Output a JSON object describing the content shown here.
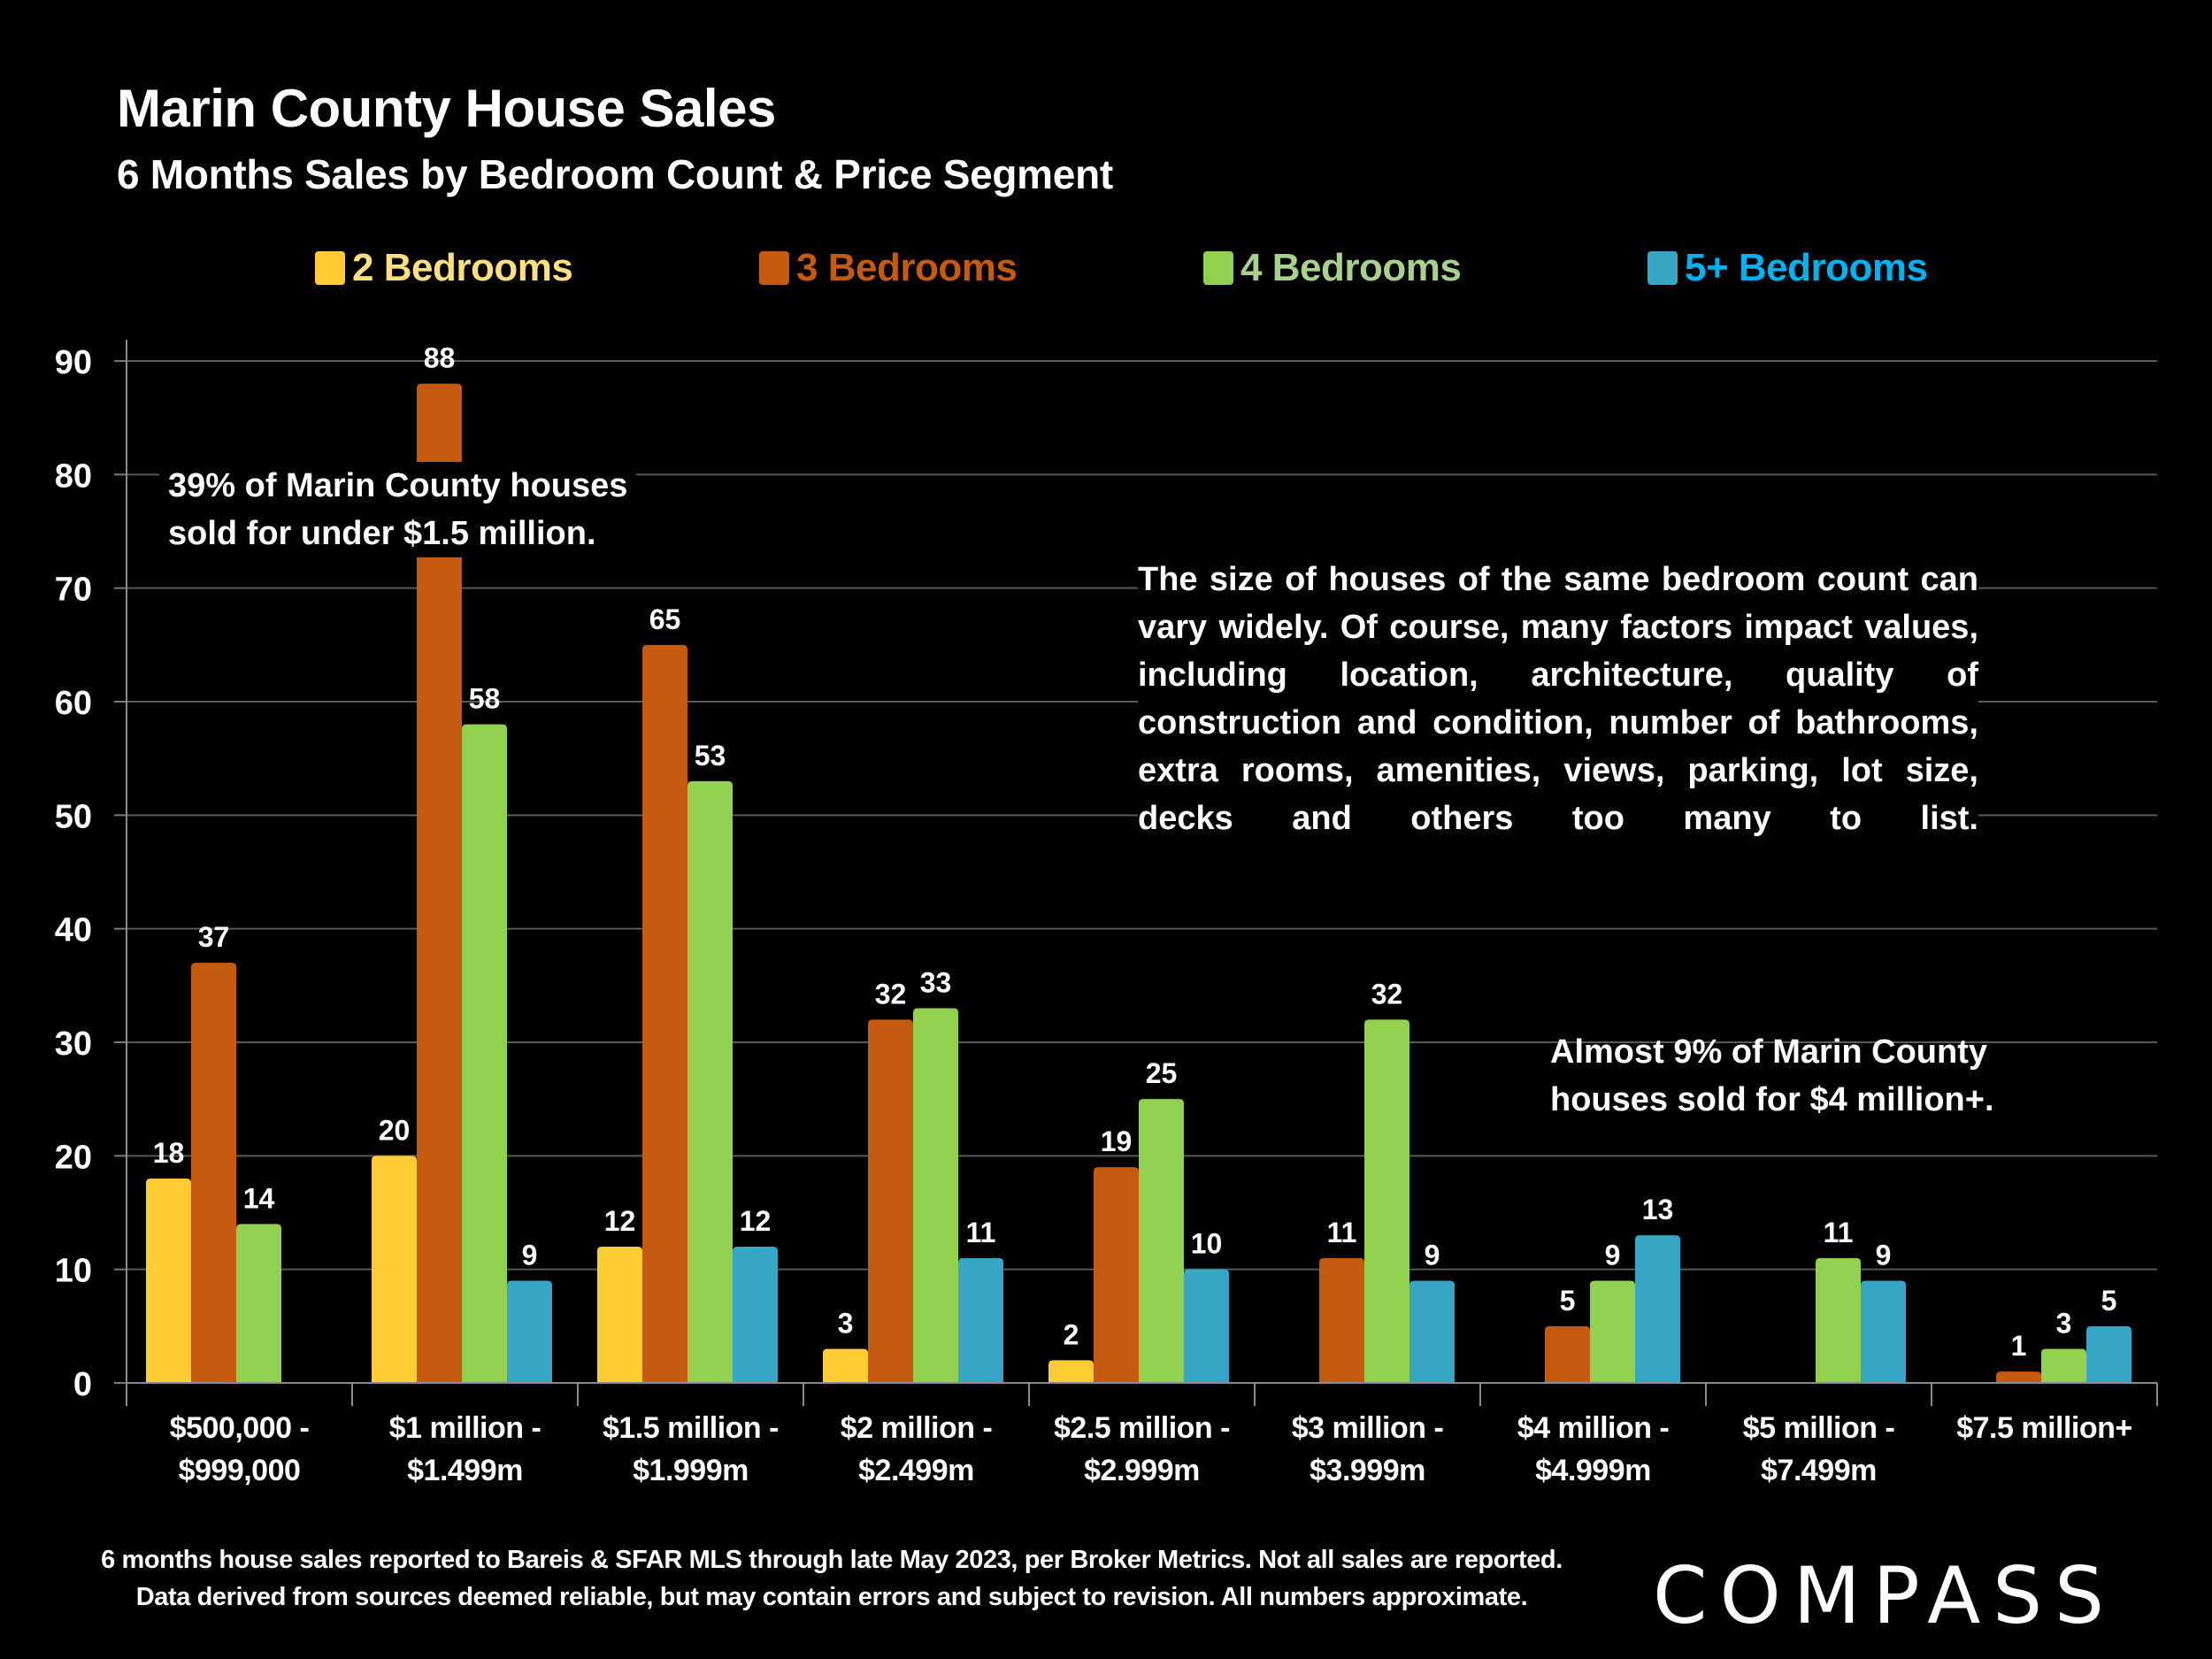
{
  "header": {
    "title": "Marin County House Sales",
    "subtitle": "6 Months Sales by Bedroom Count & Price Segment"
  },
  "annotations": {
    "left": [
      "39% of Marin County houses",
      "sold for under $1.5 million."
    ],
    "right": "The size of houses of the same bedroom count can vary widely. Of course, many factors impact values, including  location, architecture, quality of construction and condition, number of bathrooms, extra rooms, amenities, views, parking, lot size, decks and others too many to list.",
    "bottom": [
      "Almost 9% of Marin County",
      "houses sold for $4 million+."
    ]
  },
  "footer": {
    "line1": "6 months house sales reported to Bareis & SFAR MLS through late May 2023, per Broker Metrics. Not all sales are reported.",
    "line2": "Data derived from sources deemed reliable, but may contain errors and subject to revision. All numbers approximate.",
    "logo": "COMPASS"
  },
  "chart_data": {
    "type": "bar",
    "title": "Marin County House Sales",
    "subtitle": "6 Months Sales by Bedroom Count & Price Segment",
    "xlabel": "",
    "ylabel": "",
    "ylim": [
      0,
      90
    ],
    "yticks": [
      0,
      10,
      20,
      30,
      40,
      50,
      60,
      70,
      80,
      90
    ],
    "grid": true,
    "legend_position": "top",
    "categories": [
      [
        "$500,000 -",
        "$999,000"
      ],
      [
        "$1 million -",
        "$1.499m"
      ],
      [
        "$1.5 million -",
        "$1.999m"
      ],
      [
        "$2 million -",
        "$2.499m"
      ],
      [
        "$2.5 million -",
        "$2.999m"
      ],
      [
        "$3 million -",
        "$3.999m"
      ],
      [
        "$4 million -",
        "$4.999m"
      ],
      [
        "$5 million -",
        "$7.499m"
      ],
      [
        "$7.5 million+"
      ]
    ],
    "series": [
      {
        "name": "2 Bedrooms",
        "color": "#FFCD33",
        "legend_text_color": "#FFE080",
        "values": [
          18,
          20,
          12,
          3,
          2,
          null,
          null,
          null,
          null
        ]
      },
      {
        "name": "3 Bedrooms",
        "color": "#C55A11",
        "legend_text_color": "#C55A11",
        "values": [
          37,
          88,
          65,
          32,
          19,
          11,
          5,
          null,
          1
        ]
      },
      {
        "name": "4 Bedrooms",
        "color": "#92D050",
        "legend_text_color": "#A9D18E",
        "values": [
          14,
          58,
          53,
          33,
          25,
          32,
          9,
          11,
          3
        ]
      },
      {
        "name": "5+ Bedrooms",
        "color": "#36A6C4",
        "legend_text_color": "#00B0F0",
        "values": [
          null,
          9,
          12,
          11,
          10,
          9,
          13,
          9,
          5
        ]
      }
    ]
  }
}
